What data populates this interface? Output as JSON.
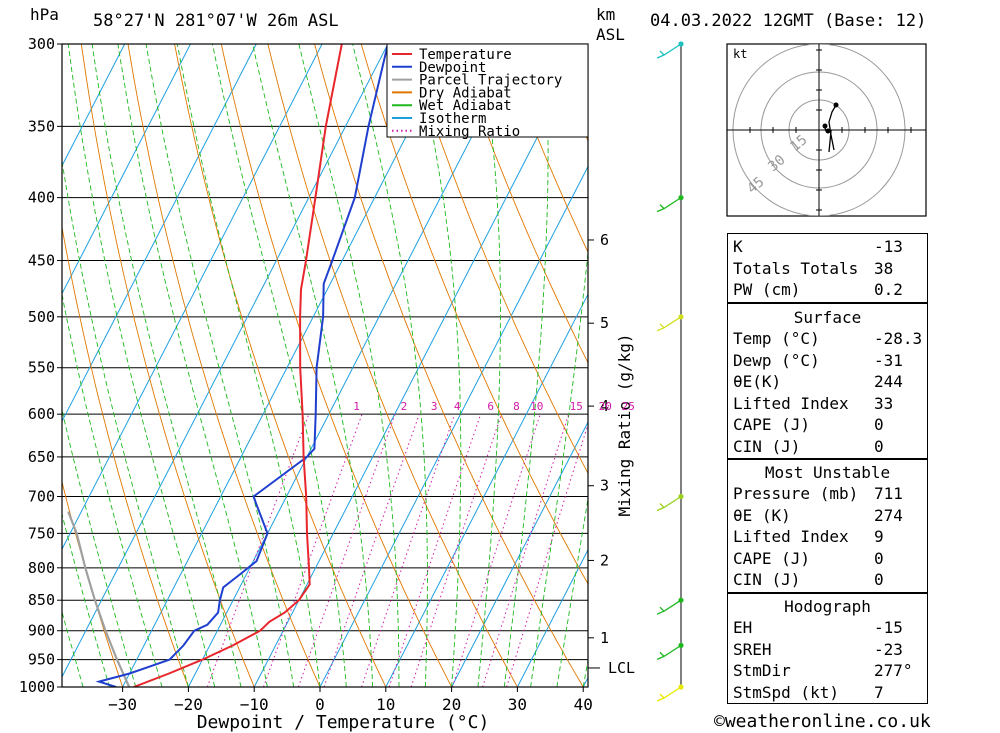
{
  "header": {
    "hpa_label": "hPa",
    "location": "58°27'N  281°07'W  26m  ASL",
    "km_label": "km",
    "asl_label": "ASL",
    "datetime": "04.03.2022  12GMT  (Base: 12)"
  },
  "chart_data": {
    "type": "skew-t log-p",
    "xlabel": "Dewpoint / Temperature (°C)",
    "ylabel_left": "hPa",
    "ylabel_right": "Mixing Ratio (g/kg)",
    "x_ticks": [
      -30,
      -20,
      -10,
      0,
      10,
      20,
      30,
      40
    ],
    "pressure_levels": [
      300,
      350,
      400,
      450,
      500,
      550,
      600,
      650,
      700,
      750,
      800,
      850,
      900,
      950,
      1000
    ],
    "km_ticks": [
      {
        "km": "1",
        "p": 912
      },
      {
        "km": "2",
        "p": 789
      },
      {
        "km": "3",
        "p": 686
      },
      {
        "km": "4",
        "p": 591
      },
      {
        "km": "5",
        "p": 506
      },
      {
        "km": "6",
        "p": 433
      }
    ],
    "lcl_label": "LCL",
    "lcl_pressure": 965,
    "mixing_ratio_labels": [
      {
        "label": "1",
        "t": -15.8
      },
      {
        "label": "2",
        "t": -8.6
      },
      {
        "label": "3",
        "t": -4.0
      },
      {
        "label": "4",
        "t": -0.5
      },
      {
        "label": "6",
        "t": 4.6
      },
      {
        "label": "8",
        "t": 8.5
      },
      {
        "label": "10",
        "t": 11.6
      },
      {
        "label": "15",
        "t": 17.6
      },
      {
        "label": "20",
        "t": 22.0
      },
      {
        "label": "25",
        "t": 25.5
      }
    ],
    "legend": [
      {
        "name": "Temperature",
        "color": "#e8262c"
      },
      {
        "name": "Dewpoint",
        "color": "#1f3fcf"
      },
      {
        "name": "Parcel Trajectory",
        "color": "#a0a0a0"
      },
      {
        "name": "Dry Adiabat",
        "color": "#e07800"
      },
      {
        "name": "Wet Adiabat",
        "color": "#1eb81e"
      },
      {
        "name": "Isotherm",
        "color": "#1ea0e0"
      },
      {
        "name": "Mixing Ratio",
        "color": "#d01aa8"
      }
    ],
    "temperature_profile": [
      [
        1000,
        -28.3
      ],
      [
        975,
        -24
      ],
      [
        950,
        -20
      ],
      [
        925,
        -16.5
      ],
      [
        900,
        -13.5
      ],
      [
        885,
        -12.8
      ],
      [
        870,
        -11.2
      ],
      [
        850,
        -10
      ],
      [
        825,
        -9.6
      ],
      [
        800,
        -11
      ],
      [
        750,
        -14
      ],
      [
        700,
        -17
      ],
      [
        650,
        -20.5
      ],
      [
        600,
        -24
      ],
      [
        550,
        -28
      ],
      [
        500,
        -32
      ],
      [
        475,
        -34
      ],
      [
        450,
        -35.5
      ],
      [
        400,
        -39
      ],
      [
        350,
        -43
      ],
      [
        300,
        -47
      ]
    ],
    "dewpoint_profile": [
      [
        1000,
        -31
      ],
      [
        990,
        -34
      ],
      [
        975,
        -30
      ],
      [
        960,
        -27
      ],
      [
        950,
        -25
      ],
      [
        925,
        -24
      ],
      [
        900,
        -23.5
      ],
      [
        890,
        -22
      ],
      [
        870,
        -21.3
      ],
      [
        850,
        -22
      ],
      [
        830,
        -22.5
      ],
      [
        810,
        -21
      ],
      [
        790,
        -19.5
      ],
      [
        750,
        -20
      ],
      [
        710,
        -24
      ],
      [
        700,
        -25
      ],
      [
        650,
        -20
      ],
      [
        640,
        -19.5
      ],
      [
        600,
        -22
      ],
      [
        550,
        -25.5
      ],
      [
        500,
        -28.5
      ],
      [
        470,
        -31
      ],
      [
        450,
        -31.5
      ],
      [
        400,
        -33
      ],
      [
        350,
        -36.5
      ],
      [
        300,
        -40
      ]
    ],
    "parcel_profile": [
      [
        1000,
        -29
      ],
      [
        950,
        -33
      ],
      [
        900,
        -37
      ],
      [
        850,
        -41
      ],
      [
        800,
        -45
      ],
      [
        750,
        -49
      ],
      [
        720,
        -52
      ]
    ],
    "wind_barbs": [
      {
        "p": 1000,
        "color": "#e8e800"
      },
      {
        "p": 925,
        "color": "#1eb81e"
      },
      {
        "p": 850,
        "color": "#1eb81e"
      },
      {
        "p": 700,
        "color": "#9bd01e"
      },
      {
        "p": 500,
        "color": "#d0e01e"
      },
      {
        "p": 400,
        "color": "#1eb81e"
      },
      {
        "p": 300,
        "color": "#1ec0c0"
      }
    ],
    "hodograph": {
      "unit_label": "kt",
      "ring_labels": [
        "15",
        "30",
        "45"
      ]
    }
  },
  "indices": {
    "top": [
      {
        "label": "K",
        "value": "-13"
      },
      {
        "label": "Totals Totals",
        "value": "38"
      },
      {
        "label": "PW (cm)",
        "value": "0.2"
      }
    ],
    "surface_title": "Surface",
    "surface": [
      {
        "label": "Temp (°C)",
        "value": "-28.3"
      },
      {
        "label": "Dewp (°C)",
        "value": "-31"
      },
      {
        "label": "θE(K)",
        "value": "244"
      },
      {
        "label": "Lifted Index",
        "value": "33"
      },
      {
        "label": "CAPE (J)",
        "value": "0"
      },
      {
        "label": "CIN (J)",
        "value": "0"
      }
    ],
    "unstable_title": "Most Unstable",
    "unstable": [
      {
        "label": "Pressure (mb)",
        "value": "711"
      },
      {
        "label": "θE (K)",
        "value": "274"
      },
      {
        "label": "Lifted Index",
        "value": "9"
      },
      {
        "label": "CAPE (J)",
        "value": "0"
      },
      {
        "label": "CIN (J)",
        "value": "0"
      }
    ],
    "hodograph_title": "Hodograph",
    "hodograph": [
      {
        "label": "EH",
        "value": "-15"
      },
      {
        "label": "SREH",
        "value": "-23"
      },
      {
        "label": "StmDir",
        "value": "277°"
      },
      {
        "label": "StmSpd (kt)",
        "value": "7"
      }
    ]
  },
  "footer": {
    "copyright": "©weatheronline.co.uk"
  }
}
